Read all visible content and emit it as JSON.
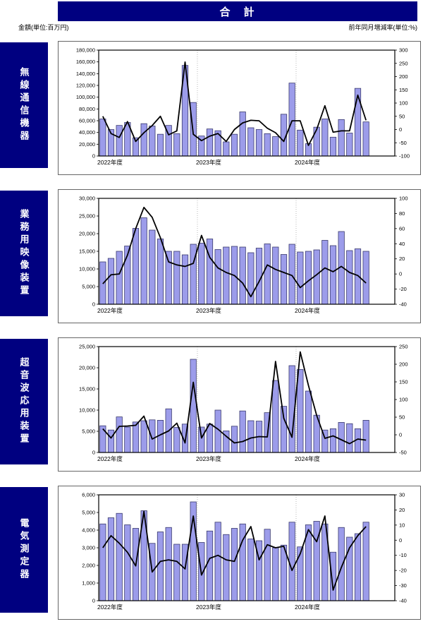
{
  "header": {
    "title": "合　計",
    "left_note": "金額(単位:百万円)",
    "right_note": "前年同月増減率(単位:%)"
  },
  "colors": {
    "banner": "#000080",
    "sidebar": "#000080",
    "bar_fill": "#9c9cea",
    "bar_border": "#3a3a6e",
    "line": "#000000",
    "year_grid": "#aaaaaa",
    "axis": "#000000"
  },
  "x_labels": [
    "2022年度",
    "2023年度",
    "2024年度"
  ],
  "layout_slots": 36,
  "year_boundaries": [
    0,
    12,
    24
  ],
  "chart_data": [
    {
      "type": "bar+line",
      "name": "無線通信機器",
      "bar_series_name": "金額(百万円)",
      "line_series_name": "前年同月増減率(%)",
      "left_axis": {
        "min": 0,
        "max": 180000,
        "step": 20000
      },
      "right_axis": {
        "min": -100,
        "max": 300,
        "step": 50
      },
      "bars": [
        63000,
        45000,
        52000,
        57000,
        31000,
        55000,
        51000,
        37000,
        52000,
        38000,
        154000,
        91000,
        34000,
        46000,
        43000,
        24000,
        37000,
        75000,
        48000,
        45000,
        38000,
        33000,
        71000,
        124000,
        44000,
        21000,
        49000,
        63000,
        32000,
        62000,
        39000,
        115000,
        58000
      ],
      "line": [
        50,
        -15,
        -30,
        30,
        -45,
        -12,
        15,
        50,
        -20,
        -5,
        255,
        -18,
        -42,
        -25,
        -15,
        -45,
        0,
        25,
        35,
        33,
        5,
        -12,
        -45,
        33,
        33,
        -60,
        0,
        90,
        -10,
        -5,
        -5,
        130,
        35
      ]
    },
    {
      "type": "bar+line",
      "name": "業務用映像装置",
      "bar_series_name": "金額(百万円)",
      "line_series_name": "前年同月増減率(%)",
      "left_axis": {
        "min": 0,
        "max": 30000,
        "step": 5000
      },
      "right_axis": {
        "min": -40,
        "max": 100,
        "step": 20
      },
      "bars": [
        12000,
        13000,
        15000,
        16500,
        21500,
        24500,
        21000,
        18500,
        15000,
        15000,
        14000,
        17000,
        17300,
        18500,
        15500,
        16200,
        16400,
        16200,
        14600,
        15900,
        17100,
        16200,
        14100,
        17000,
        14800,
        15000,
        15400,
        18100,
        16600,
        20600,
        15200,
        15700,
        15000
      ],
      "line": [
        -13,
        -1,
        0,
        25,
        60,
        88,
        75,
        48,
        16,
        12,
        10,
        14,
        51,
        22,
        8,
        2,
        -2,
        -12,
        -30,
        -10,
        12,
        6,
        2,
        -2,
        -18,
        -9,
        -1,
        8,
        3,
        10,
        2,
        -2,
        -12
      ]
    },
    {
      "type": "bar+line",
      "name": "超音波応用装置",
      "bar_series_name": "金額(百万円)",
      "line_series_name": "前年同月増減率(%)",
      "left_axis": {
        "min": 0,
        "max": 25000,
        "step": 5000
      },
      "right_axis": {
        "min": -50,
        "max": 250,
        "step": 50
      },
      "bars": [
        6300,
        5300,
        8400,
        6000,
        7200,
        7500,
        7700,
        7600,
        10300,
        5900,
        6700,
        22000,
        6000,
        6700,
        10000,
        5100,
        6200,
        9800,
        7500,
        7400,
        9400,
        17000,
        10900,
        20500,
        19600,
        14500,
        8800,
        5300,
        5600,
        7100,
        6800,
        5600,
        7600
      ],
      "line": [
        17,
        -9,
        24,
        25,
        27,
        53,
        -12,
        0,
        11,
        33,
        -23,
        149,
        -9,
        32,
        16,
        -4,
        -23,
        -19,
        -9,
        -5,
        -6,
        208,
        47,
        -7,
        235,
        140,
        55,
        -10,
        -3,
        -14,
        -25,
        -12,
        -15
      ]
    },
    {
      "type": "bar+line",
      "name": "電気測定器",
      "bar_series_name": "金額(百万円)",
      "line_series_name": "前年同月増減率(%)",
      "left_axis": {
        "min": 0,
        "max": 6000,
        "step": 1000
      },
      "right_axis": {
        "min": -40,
        "max": 30,
        "step": 10
      },
      "bars": [
        4350,
        4700,
        4950,
        4300,
        4100,
        5100,
        3250,
        3900,
        4150,
        3200,
        3200,
        5600,
        3300,
        3950,
        4450,
        3750,
        4100,
        4350,
        3500,
        3400,
        4050,
        3000,
        3150,
        4450,
        3050,
        4300,
        4500,
        4350,
        2750,
        4150,
        3600,
        3800,
        4450
      ],
      "line": [
        -5,
        3,
        -2,
        -8,
        -17,
        19,
        -21,
        -14,
        -13,
        -14,
        -19,
        16,
        -23,
        -12,
        -10,
        -13,
        -14,
        0,
        9,
        -13,
        -3,
        -5,
        -4,
        -20,
        -9,
        7,
        -1,
        16,
        -33,
        -18,
        -5,
        3,
        9
      ]
    }
  ]
}
